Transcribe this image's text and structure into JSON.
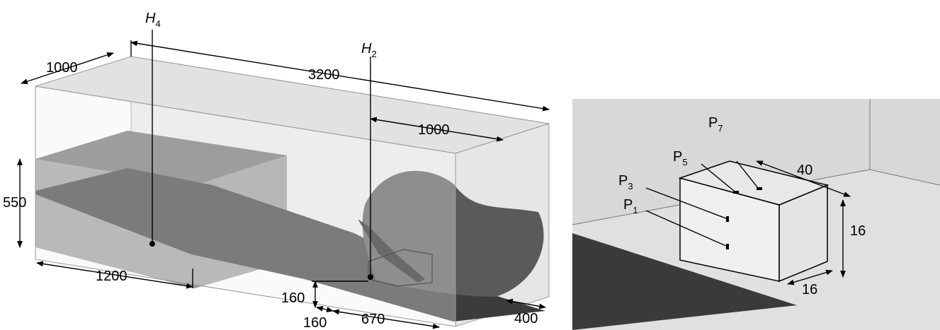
{
  "left_panel": {
    "probes": [
      {
        "main": "H",
        "sub": "4"
      },
      {
        "main": "H",
        "sub": "2"
      }
    ],
    "dimensions": [
      "1000",
      "3200",
      "1000",
      "550",
      "1200",
      "160",
      "160",
      "670",
      "400"
    ]
  },
  "right_panel": {
    "probes": [
      {
        "main": "P",
        "sub": "5"
      },
      {
        "main": "P",
        "sub": "7"
      },
      {
        "main": "P",
        "sub": "3"
      },
      {
        "main": "P",
        "sub": "1"
      }
    ],
    "dimensions": [
      "40",
      "16",
      "16"
    ]
  }
}
